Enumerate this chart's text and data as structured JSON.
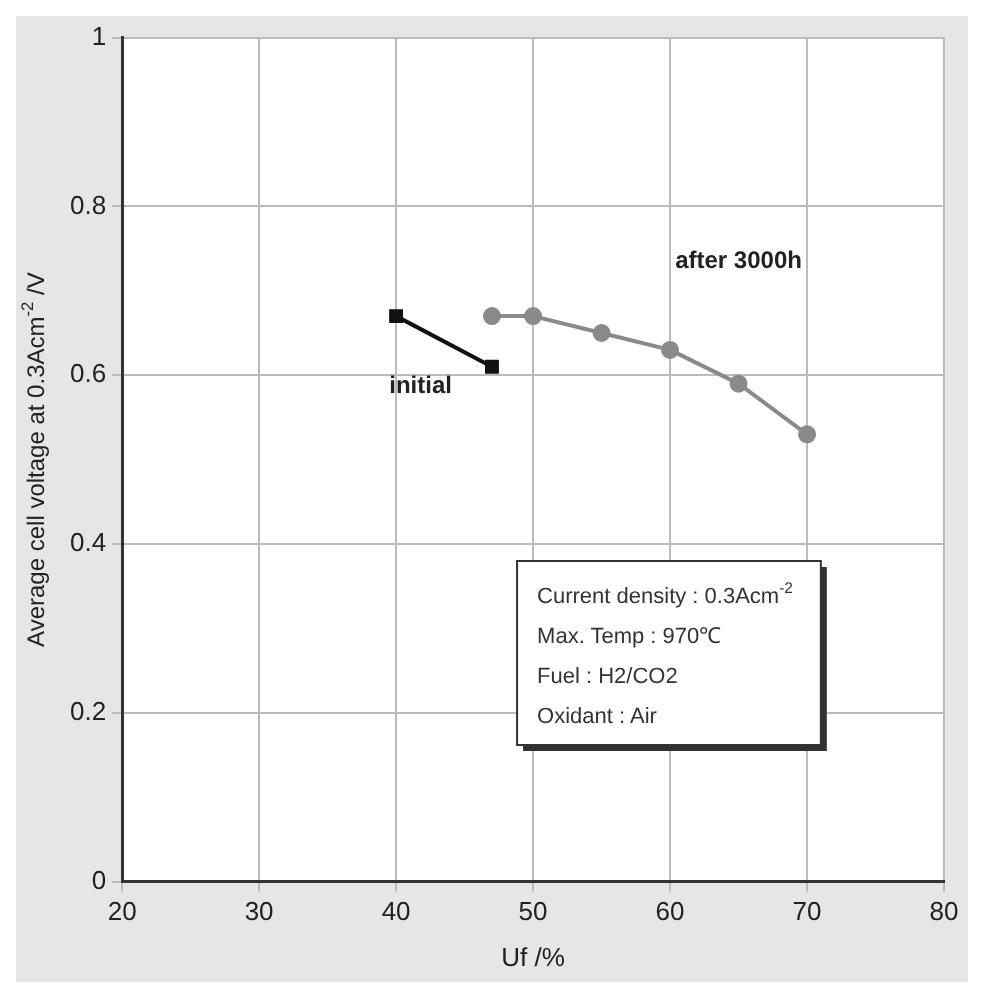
{
  "chart_data": {
    "type": "line",
    "xlabel": "Uf /%",
    "ylabel": "Average cell voltage at 0.3Acm$^{-2}$ /V",
    "xlim": [
      20,
      80
    ],
    "xticks": [
      20,
      30,
      40,
      50,
      60,
      70,
      80
    ],
    "ylim": [
      0,
      1
    ],
    "yticks": [
      0,
      0.2,
      0.4,
      0.6,
      0.8,
      1
    ],
    "grid": true,
    "legend": false,
    "series": [
      {
        "name": "initial",
        "color": "#111111",
        "marker": "square",
        "x": [
          40,
          47
        ],
        "values": [
          0.67,
          0.61
        ]
      },
      {
        "name": "after 3000h",
        "color": "#8a8a8a",
        "marker": "circle",
        "x": [
          47,
          50,
          55,
          60,
          65,
          70
        ],
        "values": [
          0.67,
          0.67,
          0.65,
          0.63,
          0.59,
          0.53
        ]
      }
    ],
    "annotations": [
      "Current density : 0.3Acm$^{-2}$",
      "Max. Temp : 970℃",
      "Fuel : H2/CO2",
      "Oxidant : Air"
    ]
  }
}
